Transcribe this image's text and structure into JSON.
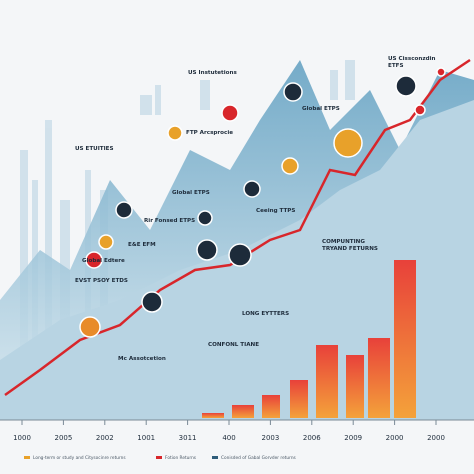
{
  "callouts": [
    {
      "title": "US Instutetions"
    },
    {
      "title": "US Cissconzdin",
      "title2": "ETFS"
    },
    {
      "title": "US ETUITIES"
    },
    {
      "title": "FTP Arcsprocie"
    },
    {
      "title": "Global ETPS"
    },
    {
      "title": "Global ETPS"
    },
    {
      "title": "Rir Fonsed ETPS"
    },
    {
      "title": "Ceeing TTPS"
    },
    {
      "title": "E&E EFM"
    },
    {
      "title": "Global Edtere"
    },
    {
      "title": "EVST PSOY ETDS"
    },
    {
      "title": "COMPUNTING",
      "title2": "TRYAND FETURNS"
    },
    {
      "title": "LONG EYTTERS"
    },
    {
      "title": "CONFONL TIANE"
    },
    {
      "title": "Mc Assotcetion"
    }
  ],
  "x_labels": [
    "1000",
    "2005",
    "2002",
    "1001",
    "3011",
    "400",
    "2003",
    "2006",
    "2009",
    "2000",
    "2000"
  ],
  "legend": [
    "Long-term or study and Citysocinre returns",
    "Fotion Returns",
    "Conisded of Gabal Gorvder returns"
  ]
}
